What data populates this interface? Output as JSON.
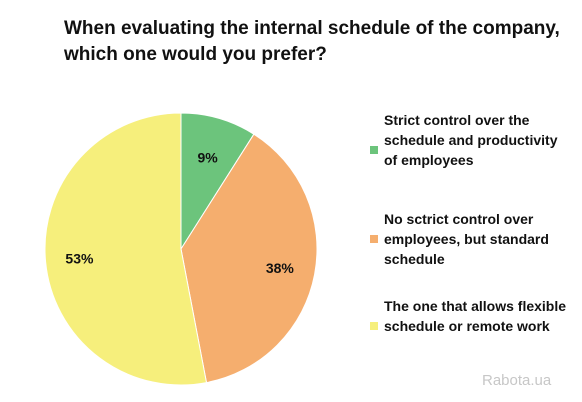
{
  "chart_data": {
    "type": "pie",
    "title": "When evaluating the internal schedule of the company, which one would you prefer?",
    "categories": [
      "Strict control over the schedule and productivity of employees",
      "No sctrict control over employees, but standard schedule",
      "The one that allows flexible schedule or remote work"
    ],
    "values": [
      9,
      38,
      53
    ],
    "value_labels": [
      "9%",
      "38%",
      "53%"
    ],
    "colors": [
      "#6cc47c",
      "#f5ae6e",
      "#f6ef7c"
    ],
    "legend_position": "right"
  },
  "legend": {
    "items": [
      {
        "label": "Strict control over the schedule and productivity of employees",
        "color": "#6cc47c"
      },
      {
        "label": "No sctrict control over employees, but standard schedule",
        "color": "#f5ae6e"
      },
      {
        "label": "The one that allows flexible schedule or remote work",
        "color": "#f6ef7c"
      }
    ]
  },
  "watermark": "Rabota.ua"
}
